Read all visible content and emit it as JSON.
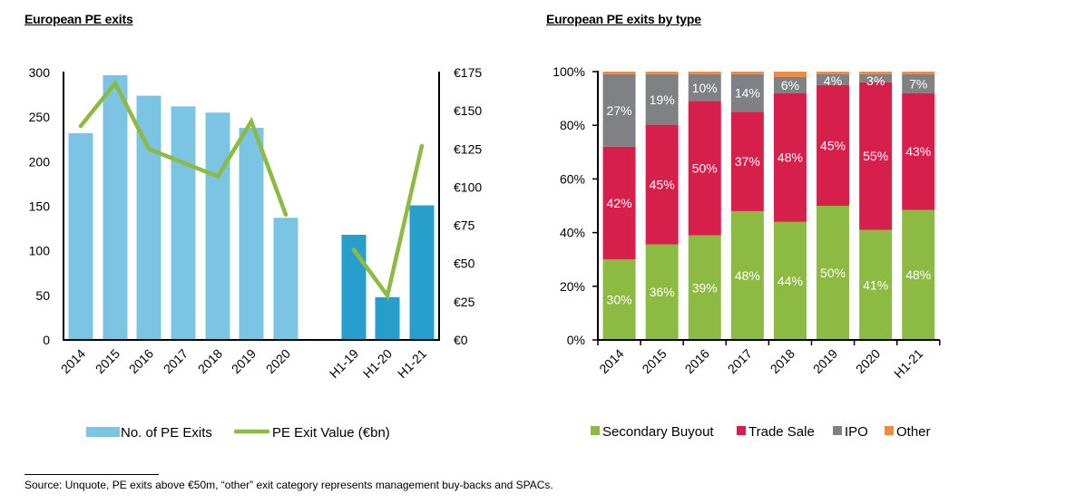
{
  "titles": {
    "left": "European PE exits",
    "right": "European PE exits by type"
  },
  "footnote": "Source:  Unquote, PE exits above €50m, “other” exit category represents management buy-backs and SPACs.",
  "colors": {
    "bar_annual": "#7BC4E4",
    "bar_half": "#279ECB",
    "line": "#8DBA43",
    "secondary_buyout": "#8DBA43",
    "trade_sale": "#D6204B",
    "ipo": "#7F8184",
    "other": "#ED8B41"
  },
  "chart_data": [
    {
      "type": "bar",
      "title": "European PE exits",
      "categories": [
        "2014",
        "2015",
        "2016",
        "2017",
        "2018",
        "2019",
        "2020",
        "H1-19",
        "H1-20",
        "H1-21"
      ],
      "series": [
        {
          "name": "No. of PE Exits",
          "kind": "bar",
          "axis": "left",
          "values": [
            232,
            297,
            274,
            262,
            255,
            238,
            137,
            118,
            48,
            151
          ]
        },
        {
          "name": "PE Exit Value (€bn)",
          "kind": "line",
          "axis": "right",
          "segments": [
            [
              0,
              6
            ],
            [
              7,
              9
            ]
          ],
          "values": [
            140,
            168,
            125,
            116,
            107,
            143,
            82,
            59,
            29,
            127
          ]
        }
      ],
      "y_left": {
        "ylim": [
          0,
          300
        ],
        "ticks": [
          "0",
          "50",
          "100",
          "150",
          "200",
          "250",
          "300"
        ]
      },
      "y_right": {
        "ylim": [
          0,
          175
        ],
        "ticks": [
          "€0",
          "€25",
          "€50",
          "€75",
          "€100",
          "€125",
          "€150",
          "€175"
        ]
      },
      "xlabel": "",
      "ylabel": "",
      "grid": false,
      "legend": {
        "placement": "bottom",
        "entries": [
          "No. of PE Exits",
          "PE Exit Value (€bn)"
        ]
      }
    },
    {
      "type": "bar",
      "stacked": true,
      "percent": true,
      "title": "European PE exits by type",
      "categories": [
        "2014",
        "2015",
        "2016",
        "2017",
        "2018",
        "2019",
        "2020",
        "H1-21"
      ],
      "series": [
        {
          "name": "Secondary Buyout",
          "values": [
            30,
            36,
            39,
            48,
            44,
            50,
            41,
            48
          ],
          "labels": [
            "30%",
            "36%",
            "39%",
            "48%",
            "44%",
            "50%",
            "41%",
            "48%"
          ]
        },
        {
          "name": "Trade Sale",
          "values": [
            42,
            45,
            50,
            37,
            48,
            45,
            55,
            43
          ],
          "labels": [
            "42%",
            "45%",
            "50%",
            "37%",
            "48%",
            "45%",
            "55%",
            "43%"
          ]
        },
        {
          "name": "IPO",
          "values": [
            27,
            19,
            10,
            14,
            6,
            4,
            3,
            7
          ],
          "labels": [
            "27%",
            "19%",
            "10%",
            "14%",
            "6%",
            "4%",
            "3%",
            "7%"
          ]
        },
        {
          "name": "Other",
          "values": [
            1,
            1,
            1,
            1,
            2,
            1,
            1,
            1
          ],
          "labels": [
            "",
            "",
            "",
            "",
            "",
            "",
            "",
            ""
          ]
        }
      ],
      "y": {
        "ylim": [
          0,
          100
        ],
        "ticks": [
          "0%",
          "20%",
          "40%",
          "60%",
          "80%",
          "100%"
        ]
      },
      "xlabel": "",
      "ylabel": "",
      "grid": false,
      "legend": {
        "placement": "bottom",
        "entries": [
          "Secondary Buyout",
          "Trade Sale",
          "IPO",
          "Other"
        ]
      }
    }
  ]
}
